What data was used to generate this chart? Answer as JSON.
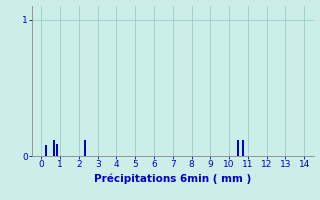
{
  "xlabel": "Précipitations 6min ( mm )",
  "background_color": "#cceee8",
  "bar_color": "#0000cc",
  "grid_color": "#99cccc",
  "axis_color": "#888888",
  "text_color": "#0000cc",
  "xlim": [
    -0.5,
    14.5
  ],
  "ylim": [
    0,
    1.1
  ],
  "yticks": [
    0,
    1
  ],
  "xticks": [
    0,
    1,
    2,
    3,
    4,
    5,
    6,
    7,
    8,
    9,
    10,
    11,
    12,
    13,
    14
  ],
  "bar_positions": [
    0.25,
    0.65,
    0.85,
    2.3,
    10.45,
    10.75
  ],
  "bar_heights": [
    0.08,
    0.12,
    0.09,
    0.12,
    0.12,
    0.12
  ],
  "bar_width": 0.1
}
